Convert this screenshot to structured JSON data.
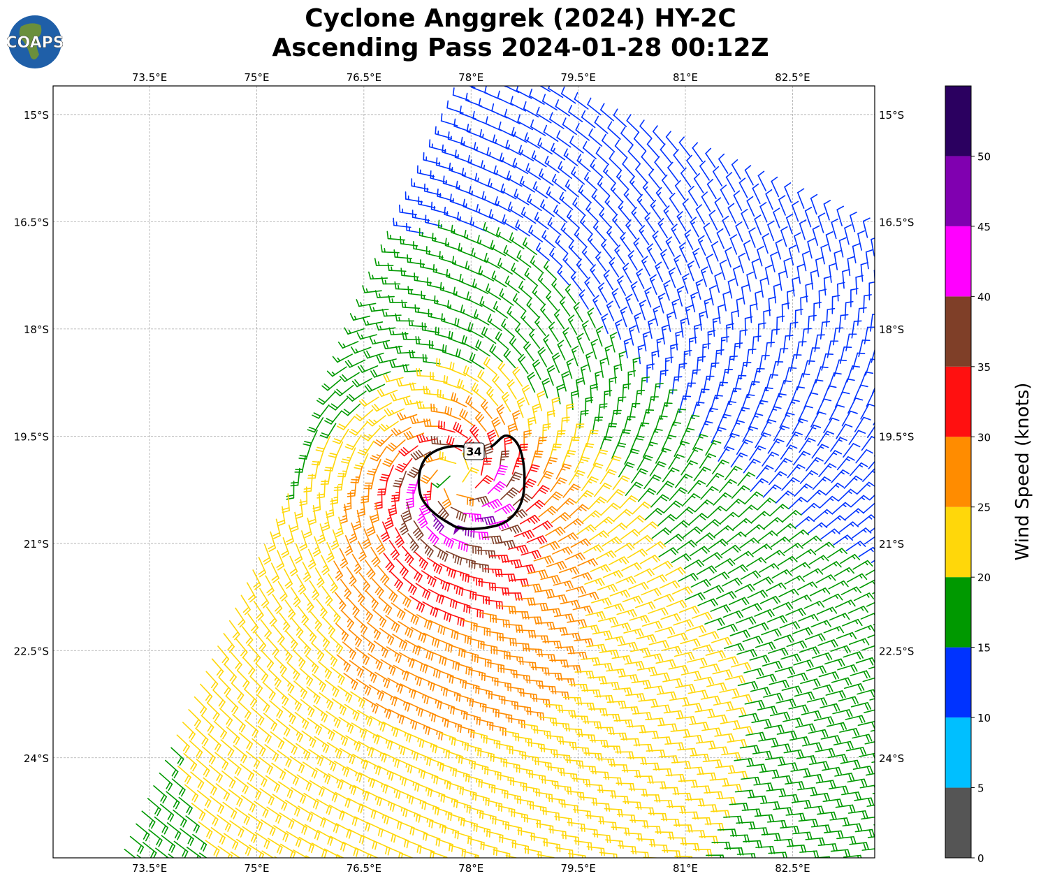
{
  "header": {
    "title_line1": "Cyclone Anggrek (2024) HY-2C",
    "title_line2": "Ascending Pass 2024-01-28 00:12Z",
    "logo_text": "COAPS"
  },
  "chart_data": {
    "type": "wind-barbs",
    "title": "Cyclone Anggrek (2024) HY-2C Ascending Pass 2024-01-28 00:12Z",
    "lon_range": [
      72.15,
      83.65
    ],
    "lat_range": [
      -25.4,
      -14.6
    ],
    "lon_ticks": [
      {
        "value": 73.5,
        "label": "73.5°E"
      },
      {
        "value": 75,
        "label": "75°E"
      },
      {
        "value": 76.5,
        "label": "76.5°E"
      },
      {
        "value": 78,
        "label": "78°E"
      },
      {
        "value": 79.5,
        "label": "79.5°E"
      },
      {
        "value": 81,
        "label": "81°E"
      },
      {
        "value": 82.5,
        "label": "82.5°E"
      }
    ],
    "lat_ticks": [
      {
        "value": -15,
        "label": "15°S"
      },
      {
        "value": -16.5,
        "label": "16.5°S"
      },
      {
        "value": -18,
        "label": "18°S"
      },
      {
        "value": -19.5,
        "label": "19.5°S"
      },
      {
        "value": -21,
        "label": "21°S"
      },
      {
        "value": -22.5,
        "label": "22.5°S"
      },
      {
        "value": -24,
        "label": "24°S"
      }
    ],
    "grid": true,
    "cyclone_center": {
      "lon": 77.79,
      "lat": -20.14
    },
    "max_wind_kt": 42,
    "contour": {
      "level": 34,
      "label": "34"
    },
    "swath_left_edge": [
      {
        "lon": 78.0,
        "lat": -14.6
      },
      {
        "lon": 73.03,
        "lat": -25.4
      }
    ],
    "colorbar": {
      "label": "Wind Speed (knots)",
      "bounds": [
        0,
        5,
        10,
        15,
        20,
        25,
        30,
        35,
        40,
        45,
        50,
        55
      ],
      "colors": [
        "#555555",
        "#00bfff",
        "#0033ff",
        "#009900",
        "#ffd70a",
        "#ff8c00",
        "#ff1010",
        "#7f3f28",
        "#ff00ff",
        "#8000b0",
        "#2b0060"
      ],
      "ticks": [
        "0",
        "5",
        "10",
        "15",
        "20",
        "25",
        "30",
        "35",
        "40",
        "45",
        "50"
      ]
    }
  }
}
